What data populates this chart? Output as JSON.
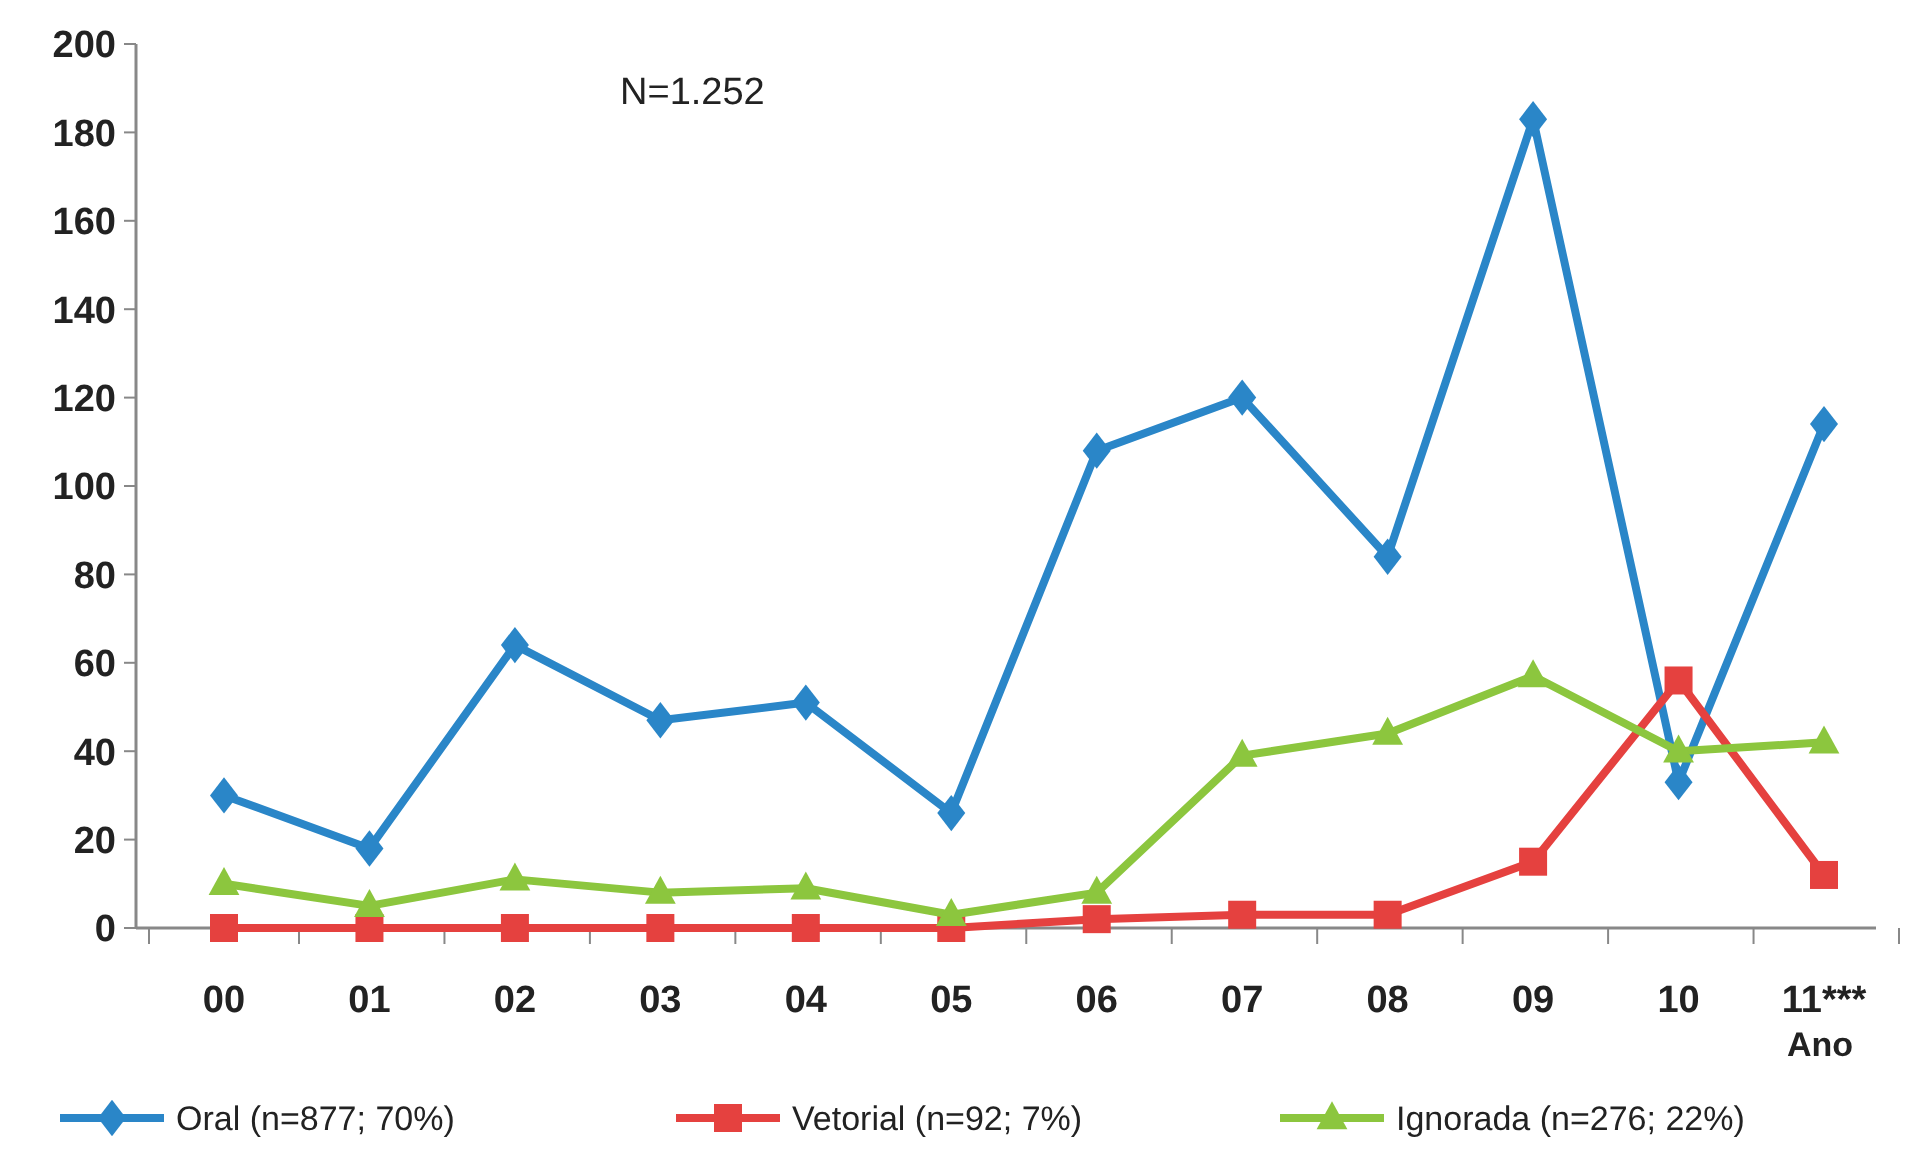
{
  "chart_data": {
    "type": "line",
    "xlabel": "Ano",
    "annotations": [
      "N=1.252"
    ],
    "categories": [
      "00",
      "01",
      "02",
      "03",
      "04",
      "05",
      "06",
      "07",
      "08",
      "09",
      "10",
      "11***"
    ],
    "series": [
      {
        "name": "Oral (n=877; 70%)",
        "color": "#2a86c8",
        "marker": "diamond",
        "values": [
          30,
          18,
          64,
          47,
          51,
          26,
          108,
          120,
          84,
          183,
          33,
          114
        ]
      },
      {
        "name": "Vetorial (n=92; 7%)",
        "color": "#e5413f",
        "marker": "square",
        "values": [
          0,
          0,
          0,
          0,
          0,
          0,
          2,
          3,
          3,
          15,
          56,
          12
        ]
      },
      {
        "name": "Ignorada (n=276; 22%)",
        "color": "#8cc63e",
        "marker": "triangle",
        "values": [
          10,
          5,
          11,
          8,
          9,
          3,
          8,
          39,
          44,
          57,
          40,
          42
        ]
      }
    ],
    "ylim": [
      0,
      200
    ],
    "yticks": [
      0,
      20,
      40,
      60,
      80,
      100,
      120,
      140,
      160,
      180,
      200
    ],
    "legend": "bottom",
    "line_style": "solid"
  }
}
